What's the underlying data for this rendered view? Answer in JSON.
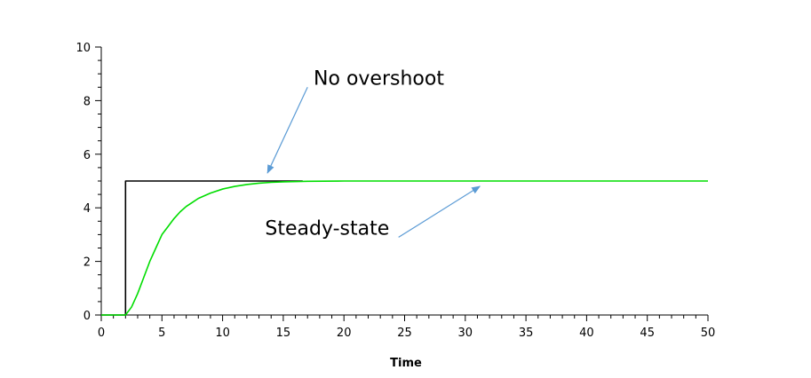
{
  "chart_data": {
    "type": "line",
    "title": "",
    "xlabel": "Time",
    "ylabel": "",
    "xlim": [
      0,
      50
    ],
    "ylim": [
      0,
      10
    ],
    "xticks": [
      0,
      5,
      10,
      15,
      20,
      25,
      30,
      35,
      40,
      45,
      50
    ],
    "yticks": [
      0,
      2,
      4,
      6,
      8,
      10
    ],
    "grid": false,
    "series": [
      {
        "color": "#000000",
        "points": [
          [
            0,
            0
          ],
          [
            2,
            0
          ],
          [
            2,
            5
          ],
          [
            16.6,
            5
          ]
        ]
      },
      {
        "color": "#00dd00",
        "points": [
          [
            0,
            0
          ],
          [
            2,
            0
          ],
          [
            2.5,
            0.3
          ],
          [
            3,
            0.8
          ],
          [
            3.5,
            1.4
          ],
          [
            4,
            2.0
          ],
          [
            4.5,
            2.5
          ],
          [
            5,
            3.0
          ],
          [
            5.5,
            3.3
          ],
          [
            6,
            3.6
          ],
          [
            6.5,
            3.85
          ],
          [
            7,
            4.05
          ],
          [
            7.5,
            4.2
          ],
          [
            8,
            4.35
          ],
          [
            8.5,
            4.45
          ],
          [
            9,
            4.55
          ],
          [
            10,
            4.7
          ],
          [
            11,
            4.8
          ],
          [
            12,
            4.87
          ],
          [
            13,
            4.92
          ],
          [
            14,
            4.95
          ],
          [
            15,
            4.97
          ],
          [
            17,
            4.99
          ],
          [
            20,
            5.0
          ],
          [
            50,
            5.0
          ]
        ]
      }
    ],
    "annotations": [
      {
        "text": "No overshoot",
        "x": 17.5,
        "y": 8.6,
        "arrow_from": [
          17,
          8.5
        ],
        "arrow_to": [
          13.7,
          5.3
        ]
      },
      {
        "text": "Steady-state",
        "x": 13.5,
        "y": 3.0,
        "arrow_from": [
          24.5,
          2.9
        ],
        "arrow_to": [
          31.2,
          4.8
        ]
      }
    ]
  }
}
